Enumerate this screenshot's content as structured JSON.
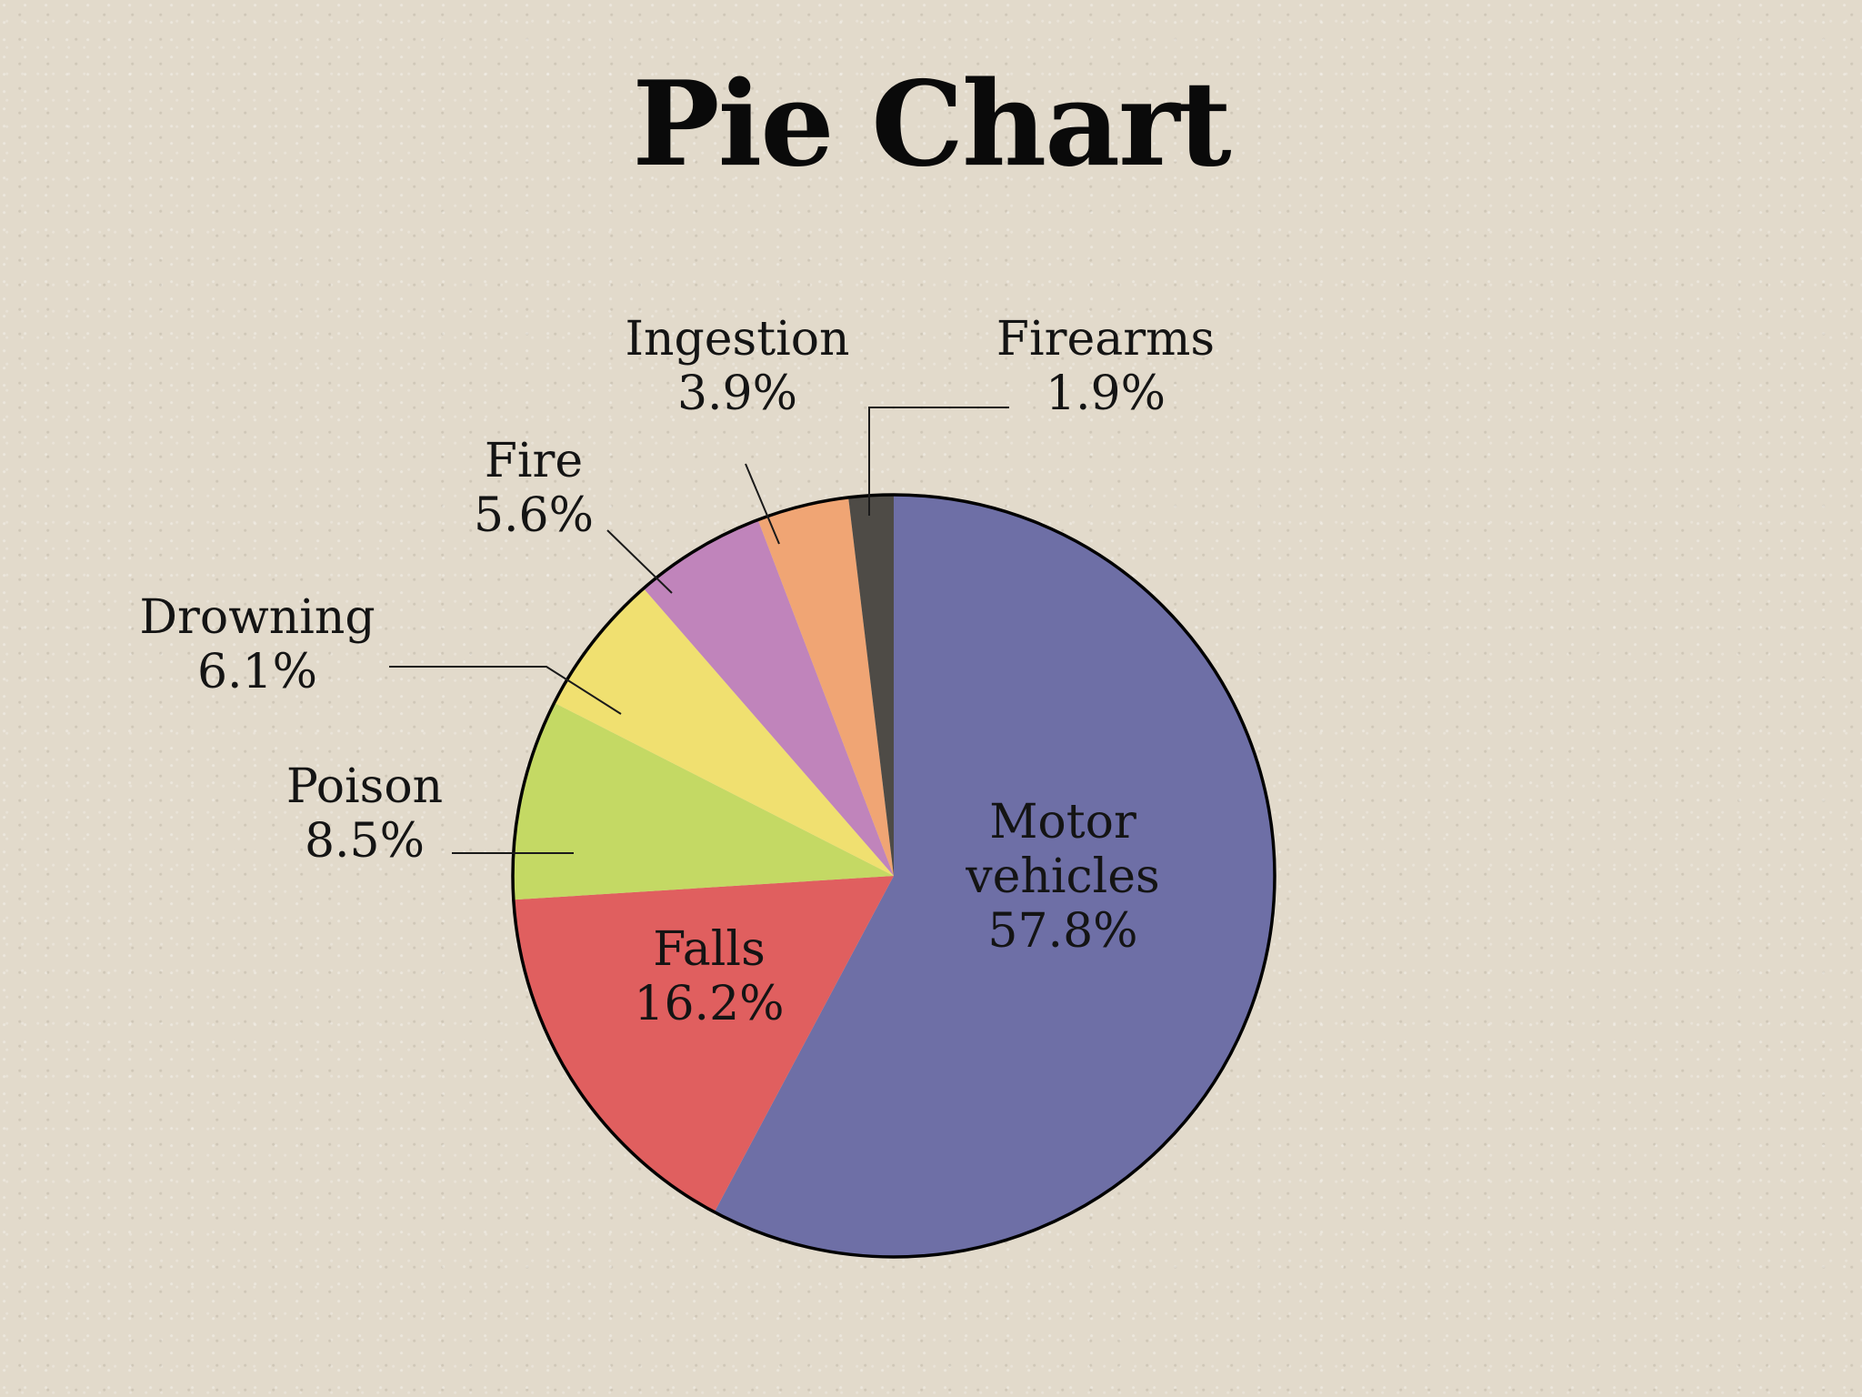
{
  "colors": {
    "background": "#e2dacb",
    "outline": "#000000",
    "leader_line": "#1a1a1a"
  },
  "chart_data": {
    "type": "pie",
    "title": "Pie Chart",
    "start_angle_deg": 0,
    "direction": "clockwise",
    "slices": [
      {
        "key": "motor",
        "label": [
          "Motor",
          "vehicles"
        ],
        "value_label": "57.8%",
        "value": 57.8,
        "color": "#6e6fa6",
        "label_placement": "inside"
      },
      {
        "key": "falls",
        "label": [
          "Falls"
        ],
        "value_label": "16.2%",
        "value": 16.2,
        "color": "#e05f5f",
        "label_placement": "inside"
      },
      {
        "key": "poison",
        "label": [
          "Poison"
        ],
        "value_label": "8.5%",
        "value": 8.5,
        "color": "#c4d964",
        "label_placement": "outside"
      },
      {
        "key": "drowning",
        "label": [
          "Drowning"
        ],
        "value_label": "6.1%",
        "value": 6.1,
        "color": "#f0e070",
        "label_placement": "outside"
      },
      {
        "key": "fire",
        "label": [
          "Fire"
        ],
        "value_label": "5.6%",
        "value": 5.6,
        "color": "#c084bb",
        "label_placement": "outside"
      },
      {
        "key": "ingestion",
        "label": [
          "Ingestion"
        ],
        "value_label": "3.9%",
        "value": 3.9,
        "color": "#f0a574",
        "label_placement": "outside"
      },
      {
        "key": "firearms",
        "label": [
          "Firearms"
        ],
        "value_label": "1.9%",
        "value": 1.9,
        "color": "#4e4b46",
        "label_placement": "outside"
      }
    ]
  }
}
